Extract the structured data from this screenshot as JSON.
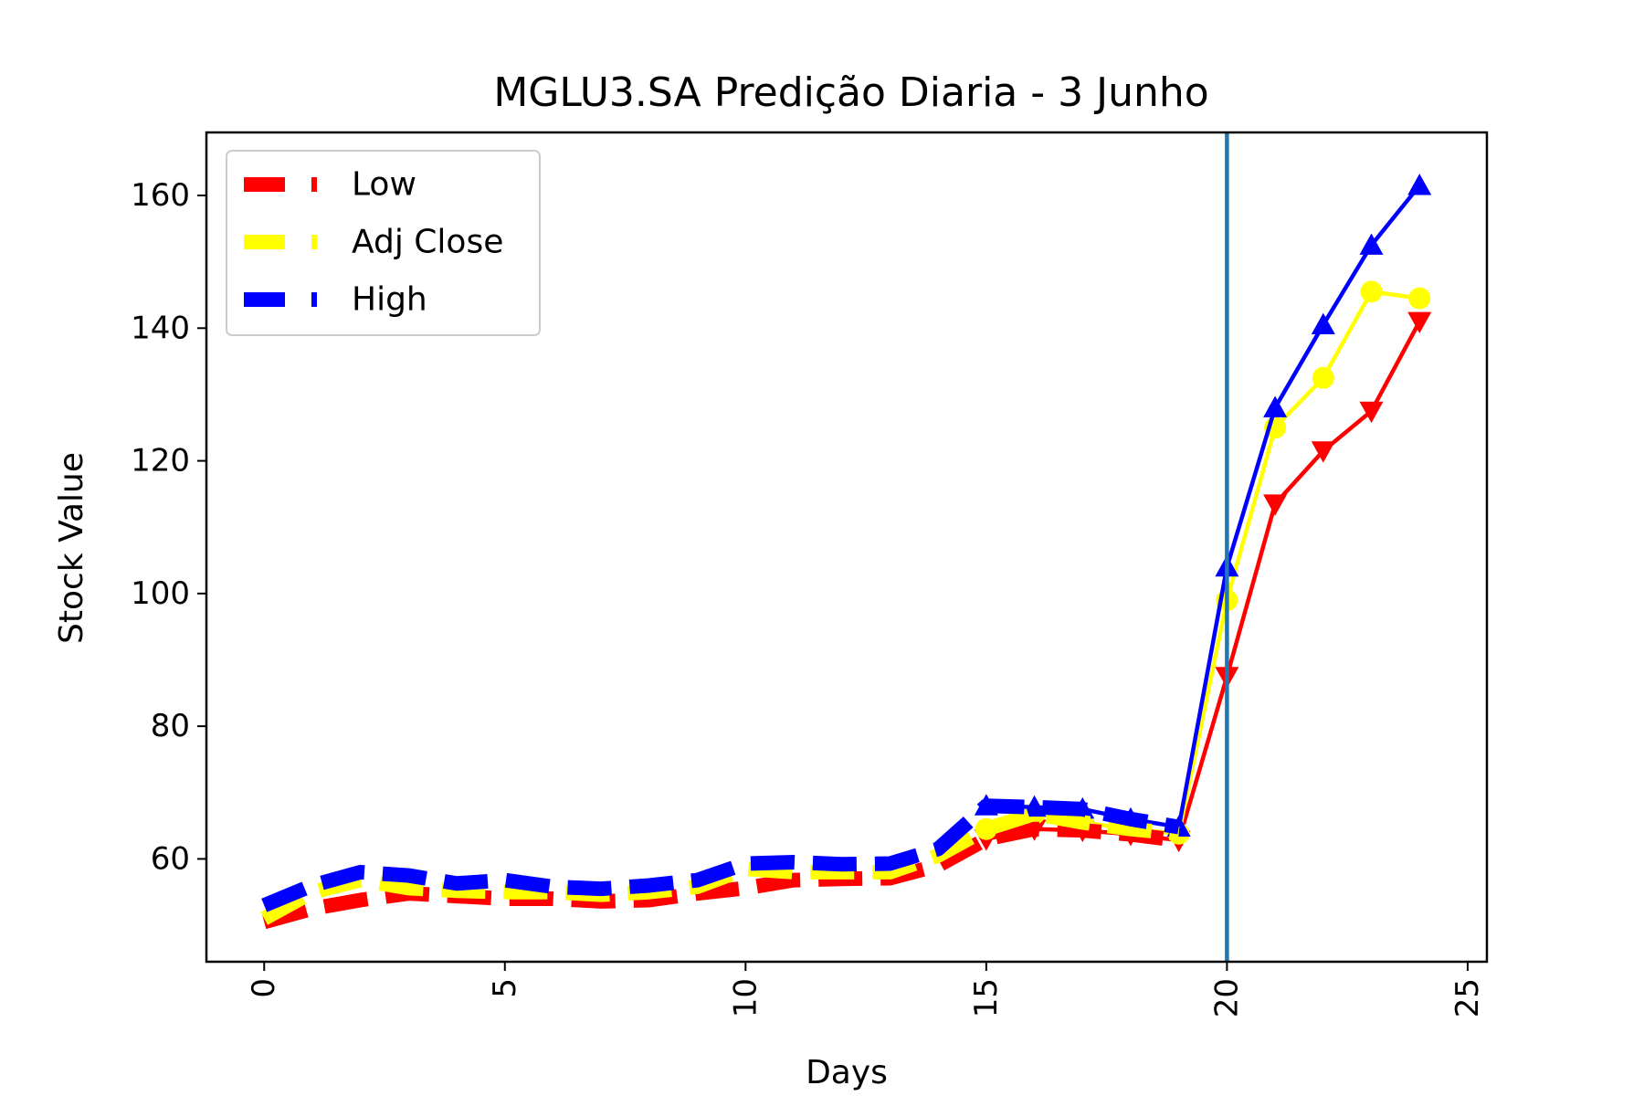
{
  "chart_data": {
    "type": "line",
    "title": "MGLU3.SA Predição Diaria - 3 Junho",
    "xlabel": "Days",
    "ylabel": "Stock Value",
    "xlim": [
      -1.2,
      25.4
    ],
    "ylim": [
      44.5,
      169.5
    ],
    "xticks": [
      0,
      5,
      10,
      15,
      20,
      25
    ],
    "yticks": [
      60,
      80,
      100,
      120,
      140,
      160
    ],
    "x_tick_rotation": 90,
    "grid": false,
    "legend_position": "upper-left",
    "vertical_line": {
      "x": 20,
      "color": "#1f77b4"
    },
    "series": [
      {
        "name": "Low",
        "color": "#ff0000",
        "x_actual": [
          0,
          1,
          2,
          3,
          4,
          5,
          6,
          7,
          8,
          9,
          10,
          11,
          12,
          13,
          14,
          15,
          16,
          17,
          18,
          19
        ],
        "actual": [
          50.5,
          52.5,
          53.8,
          54.8,
          54.4,
          54.0,
          54.0,
          53.6,
          53.8,
          54.8,
          55.6,
          56.8,
          57.0,
          57.1,
          59.0,
          63.0,
          64.5,
          64.3,
          63.7,
          62.8
        ],
        "x_predicted": [
          15,
          16,
          17,
          18,
          19,
          20,
          21,
          22,
          23,
          24
        ],
        "predicted": [
          63.0,
          64.5,
          64.3,
          63.7,
          62.8,
          87.5,
          113.5,
          121.5,
          127.5,
          141.0
        ],
        "marker": "triangle-down"
      },
      {
        "name": "Adj Close",
        "color": "#ffff00",
        "x_actual": [
          0,
          1,
          2,
          3,
          4,
          5,
          6,
          7,
          8,
          9,
          10,
          11,
          12,
          13,
          14,
          15,
          16,
          17,
          18,
          19
        ],
        "actual": [
          51.0,
          55.0,
          56.8,
          55.6,
          55.2,
          55.0,
          55.0,
          54.6,
          55.0,
          55.8,
          58.5,
          58.0,
          58.0,
          58.0,
          60.5,
          64.5,
          66.8,
          65.5,
          64.5,
          63.8
        ],
        "x_predicted": [
          15,
          16,
          17,
          18,
          19,
          20,
          21,
          22,
          23,
          24
        ],
        "predicted": [
          64.5,
          66.8,
          65.5,
          64.5,
          63.8,
          99.0,
          125.0,
          132.5,
          145.5,
          144.5
        ],
        "marker": "circle"
      },
      {
        "name": "High",
        "color": "#0000ff",
        "x_actual": [
          0,
          1,
          2,
          3,
          4,
          5,
          6,
          7,
          8,
          9,
          10,
          11,
          12,
          13,
          14,
          15,
          16,
          17,
          18,
          19
        ],
        "actual": [
          53.0,
          56.0,
          58.0,
          57.5,
          56.3,
          56.8,
          55.8,
          55.5,
          56.0,
          56.8,
          59.3,
          59.5,
          59.2,
          59.3,
          61.5,
          68.0,
          67.8,
          67.5,
          66.0,
          64.8
        ],
        "x_predicted": [
          15,
          16,
          17,
          18,
          19,
          20,
          21,
          22,
          23,
          24
        ],
        "predicted": [
          68.0,
          67.8,
          67.5,
          66.0,
          64.8,
          104.0,
          128.0,
          140.5,
          152.5,
          161.5
        ],
        "marker": "triangle-up"
      }
    ]
  }
}
